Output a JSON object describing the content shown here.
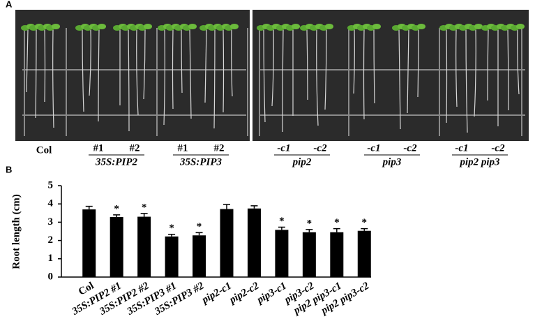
{
  "panel_a": {
    "label": "A",
    "groups": [
      {
        "label": "Col"
      },
      {
        "label": "35S:PIP2",
        "lines": [
          "#1",
          "#2"
        ]
      },
      {
        "label": "35S:PIP3",
        "lines": [
          "#1",
          "#2"
        ]
      },
      {
        "label": "pip2",
        "lines": [
          "-c1",
          "-c2"
        ]
      },
      {
        "label": "pip3",
        "lines": [
          "-c1",
          "-c2"
        ]
      },
      {
        "label": "pip2 pip3",
        "lines": [
          "-c1",
          "-c2"
        ]
      }
    ]
  },
  "chart_data": {
    "type": "bar",
    "panel_label": "B",
    "y_label": "Root length (cm)",
    "categories": [
      "Col",
      "35S:PIP2 #1",
      "35S:PIP2 #2",
      "35S:PIP3 #1",
      "35S:PIP3 #2",
      "pip2-c1",
      "pip2-c2",
      "pip3-c1",
      "pip3-c2",
      "pip2 pip3-c1",
      "pip2 pip3-c2"
    ],
    "values": [
      3.7,
      3.28,
      3.3,
      2.22,
      2.28,
      3.72,
      3.75,
      2.58,
      2.45,
      2.45,
      2.53
    ],
    "errors": [
      0.17,
      0.12,
      0.18,
      0.12,
      0.15,
      0.25,
      0.15,
      0.15,
      0.15,
      0.2,
      0.12
    ],
    "significance": [
      null,
      "*",
      "*",
      "*",
      "*",
      null,
      null,
      "*",
      "*",
      "*",
      "*"
    ],
    "color": "#000000",
    "ylim": [
      0,
      5
    ],
    "yticks": [
      0,
      1,
      2,
      3,
      4,
      5
    ]
  }
}
